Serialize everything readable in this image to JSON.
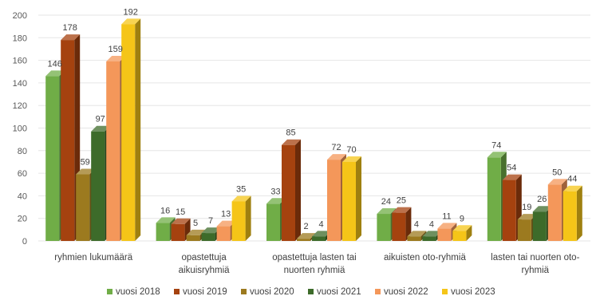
{
  "chart_data": {
    "type": "bar",
    "categories": [
      [
        "ryhmien lukumäärä"
      ],
      [
        "opastettuja",
        "aikuisryhmiä"
      ],
      [
        "opastettuja lasten tai",
        "nuorten ryhmiä"
      ],
      [
        "aikuisten oto-ryhmiä"
      ],
      [
        "lasten tai nuorten oto-",
        "ryhmiä"
      ]
    ],
    "series": [
      {
        "name": "vuosi 2018",
        "color": "#70ad47",
        "values": [
          146,
          16,
          33,
          24,
          74
        ]
      },
      {
        "name": "vuosi 2019",
        "color": "#a5420f",
        "values": [
          178,
          15,
          85,
          25,
          54
        ]
      },
      {
        "name": "vuosi 2020",
        "color": "#9c7a1f",
        "values": [
          59,
          5,
          2,
          4,
          19
        ]
      },
      {
        "name": "vuosi 2021",
        "color": "#3d6b2a",
        "values": [
          97,
          7,
          4,
          4,
          26
        ]
      },
      {
        "name": "vuosi 2022",
        "color": "#f4975a",
        "values": [
          159,
          13,
          72,
          11,
          50
        ]
      },
      {
        "name": "vuosi 2023",
        "color": "#f5c518",
        "values": [
          192,
          35,
          70,
          9,
          44
        ]
      }
    ],
    "ylim": [
      0,
      200
    ],
    "yticks": [
      0,
      20,
      40,
      60,
      80,
      100,
      120,
      140,
      160,
      180,
      200
    ],
    "grid": true,
    "legend": "bottom",
    "style": "3d-bar"
  }
}
